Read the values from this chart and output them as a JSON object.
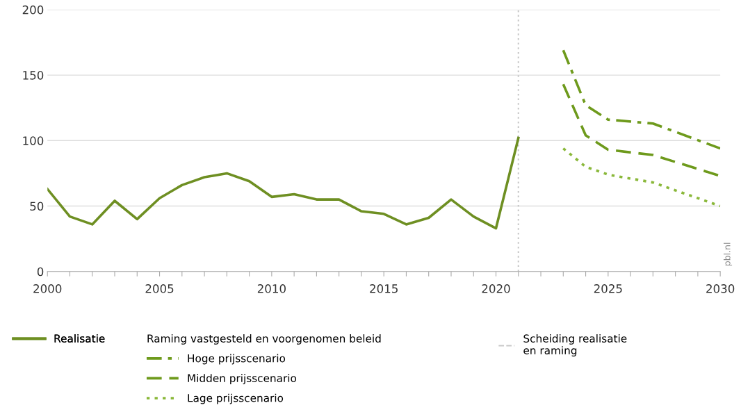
{
  "chart_data": {
    "type": "line",
    "x": [
      2000,
      2001,
      2002,
      2003,
      2004,
      2005,
      2006,
      2007,
      2008,
      2009,
      2010,
      2011,
      2012,
      2013,
      2014,
      2015,
      2016,
      2017,
      2018,
      2019,
      2020,
      2021
    ],
    "series": [
      {
        "name": "Realisatie",
        "color": "#6e8f22",
        "line_style": "solid",
        "values": [
          63,
          42,
          36,
          54,
          40,
          56,
          66,
          72,
          75,
          69,
          57,
          59,
          55,
          55,
          46,
          44,
          36,
          41,
          55,
          42,
          33,
          102
        ]
      },
      {
        "name": "Hoge prijsscenario",
        "color": "#6e9a1c",
        "line_style": "dashdot",
        "x": [
          2023,
          2024,
          2025,
          2027,
          2030
        ],
        "values": [
          169,
          127,
          116,
          113,
          94
        ]
      },
      {
        "name": "Midden prijsscenario",
        "color": "#6e9a1c",
        "line_style": "dashed",
        "x": [
          2023,
          2024,
          2025,
          2027,
          2030
        ],
        "values": [
          143,
          104,
          93,
          89,
          73
        ]
      },
      {
        "name": "Lage prijsscenario",
        "color": "#8ab83a",
        "line_style": "dotted",
        "x": [
          2023,
          2024,
          2025,
          2027,
          2030
        ],
        "values": [
          94,
          80,
          74,
          68,
          50
        ]
      }
    ],
    "legend_title": "Raming vastgesteld en voorgenomen beleid",
    "ref_lines": [
      {
        "axis": "x",
        "value": 2021,
        "label": "Scheiding realisatie\nen raming",
        "color": "#c8c8c8",
        "line_style": "dotted"
      }
    ],
    "xlim": [
      2000,
      2030
    ],
    "xticks": [
      2000,
      {
        "value": 2001,
        "label": null
      },
      {
        "value": 2002,
        "label": null
      },
      {
        "value": 2003,
        "label": null
      },
      {
        "value": 2004,
        "label": null
      },
      2005,
      {
        "value": 2006,
        "label": null
      },
      {
        "value": 2007,
        "label": null
      },
      {
        "value": 2008,
        "label": null
      },
      {
        "value": 2009,
        "label": null
      },
      2010,
      {
        "value": 2011,
        "label": null
      },
      {
        "value": 2012,
        "label": null
      },
      {
        "value": 2013,
        "label": null
      },
      {
        "value": 2014,
        "label": null
      },
      2015,
      {
        "value": 2016,
        "label": null
      },
      {
        "value": 2017,
        "label": null
      },
      {
        "value": 2018,
        "label": null
      },
      {
        "value": 2019,
        "label": null
      },
      2020,
      {
        "value": 2021,
        "label": null
      },
      {
        "value": 2022,
        "label": null
      },
      {
        "value": 2023,
        "label": null
      },
      {
        "value": 2024,
        "label": null
      },
      2025,
      {
        "value": 2026,
        "label": null
      },
      {
        "value": 2027,
        "label": null
      },
      {
        "value": 2028,
        "label": null
      },
      {
        "value": 2029,
        "label": null
      },
      2030
    ],
    "ylim": [
      0,
      200
    ],
    "yticks": [
      0,
      50,
      100,
      150,
      200
    ],
    "grid": "y",
    "legend": "bottom",
    "annotations": [
      "pbl.nl"
    ]
  }
}
